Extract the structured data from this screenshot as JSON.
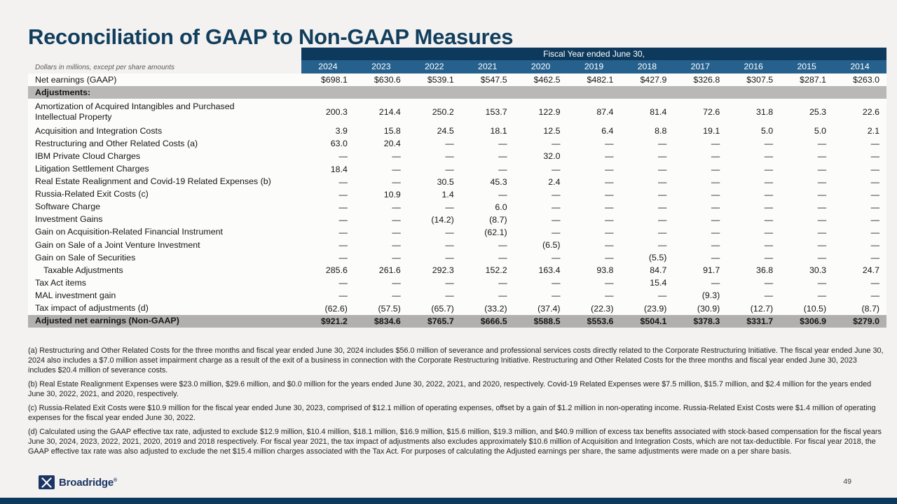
{
  "slide": {
    "title": "Reconciliation of GAAP to Non-GAAP Measures",
    "page_number": "49"
  },
  "table": {
    "note": "Dollars in millions, except per share amounts",
    "header_group": "Fiscal Year ended June 30,",
    "years": [
      "2024",
      "2023",
      "2022",
      "2021",
      "2020",
      "2019",
      "2018",
      "2017",
      "2016",
      "2015",
      "2014"
    ],
    "rows": [
      {
        "label": "Net earnings (GAAP)",
        "values": [
          "$698.1",
          "$630.6",
          "$539.1",
          "$547.5",
          "$462.5",
          "$482.1",
          "$427.9",
          "$326.8",
          "$307.5",
          "$287.1",
          "$263.0"
        ]
      },
      {
        "label": "Adjustments:",
        "type": "section",
        "values": [
          "",
          "",
          "",
          "",
          "",
          "",
          "",
          "",
          "",
          "",
          ""
        ]
      },
      {
        "label": "Amortization of Acquired Intangibles and Purchased Intellectual Property",
        "wrap": true,
        "values": [
          "200.3",
          "214.4",
          "250.2",
          "153.7",
          "122.9",
          "87.4",
          "81.4",
          "72.6",
          "31.8",
          "25.3",
          "22.6"
        ]
      },
      {
        "label": "Acquisition and Integration Costs",
        "values": [
          "3.9",
          "15.8",
          "24.5",
          "18.1",
          "12.5",
          "6.4",
          "8.8",
          "19.1",
          "5.0",
          "5.0",
          "2.1"
        ]
      },
      {
        "label": "Restructuring and Other Related Costs (a)",
        "values": [
          "63.0",
          "20.4",
          "—",
          "—",
          "—",
          "—",
          "—",
          "—",
          "—",
          "—",
          "—"
        ]
      },
      {
        "label": "IBM Private Cloud Charges",
        "values": [
          "—",
          "—",
          "—",
          "—",
          "32.0",
          "—",
          "—",
          "—",
          "—",
          "—",
          "—"
        ]
      },
      {
        "label": "Litigation Settlement Charges",
        "values": [
          "18.4",
          "—",
          "—",
          "—",
          "—",
          "—",
          "—",
          "—",
          "—",
          "—",
          "—"
        ]
      },
      {
        "label": "Real Estate Realignment and Covid-19 Related Expenses (b)",
        "values": [
          "—",
          "—",
          "30.5",
          "45.3",
          "2.4",
          "—",
          "—",
          "—",
          "—",
          "—",
          "—"
        ]
      },
      {
        "label": "Russia-Related Exit Costs (c)",
        "values": [
          "—",
          "10.9",
          "1.4",
          "—",
          "—",
          "—",
          "—",
          "—",
          "—",
          "—",
          "—"
        ]
      },
      {
        "label": "Software Charge",
        "values": [
          "—",
          "—",
          "—",
          "6.0",
          "—",
          "—",
          "—",
          "—",
          "—",
          "—",
          "—"
        ]
      },
      {
        "label": "Investment Gains",
        "values": [
          "—",
          "—",
          "(14.2)",
          "(8.7)",
          "—",
          "—",
          "—",
          "—",
          "—",
          "—",
          "—"
        ]
      },
      {
        "label": "Gain on Acquisition-Related Financial Instrument",
        "values": [
          "—",
          "—",
          "—",
          "(62.1)",
          "—",
          "—",
          "—",
          "—",
          "—",
          "—",
          "—"
        ]
      },
      {
        "label": "Gain on Sale of a Joint Venture Investment",
        "values": [
          "—",
          "—",
          "—",
          "—",
          "(6.5)",
          "—",
          "—",
          "—",
          "—",
          "—",
          "—"
        ]
      },
      {
        "label": "Gain on Sale of Securities",
        "values": [
          "—",
          "—",
          "—",
          "—",
          "—",
          "—",
          "(5.5)",
          "—",
          "—",
          "—",
          "—"
        ]
      },
      {
        "label": "Taxable Adjustments",
        "indent": true,
        "values": [
          "285.6",
          "261.6",
          "292.3",
          "152.2",
          "163.4",
          "93.8",
          "84.7",
          "91.7",
          "36.8",
          "30.3",
          "24.7"
        ]
      },
      {
        "label": "Tax Act items",
        "values": [
          "—",
          "—",
          "—",
          "—",
          "—",
          "—",
          "15.4",
          "—",
          "—",
          "—",
          "—"
        ]
      },
      {
        "label": "MAL investment gain",
        "values": [
          "—",
          "—",
          "—",
          "—",
          "—",
          "—",
          "—",
          "(9.3)",
          "—",
          "—",
          "—"
        ]
      },
      {
        "label": "Tax impact of adjustments (d)",
        "values": [
          "(62.6)",
          "(57.5)",
          "(65.7)",
          "(33.2)",
          "(37.4)",
          "(22.3)",
          "(23.9)",
          "(30.9)",
          "(12.7)",
          "(10.5)",
          "(8.7)"
        ]
      },
      {
        "label": "Adjusted net earnings (Non-GAAP)",
        "type": "total",
        "values": [
          "$921.2",
          "$834.6",
          "$765.7",
          "$666.5",
          "$588.5",
          "$553.6",
          "$504.1",
          "$378.3",
          "$331.7",
          "$306.9",
          "$279.0"
        ]
      }
    ]
  },
  "footnotes": [
    "(a) Restructuring and Other Related Costs for the three months and fiscal year ended June 30, 2024 includes $56.0 million of severance and professional services costs directly related to the Corporate Restructuring Initiative. The fiscal year ended June 30, 2024 also includes a $7.0 million asset impairment charge as a result of the exit of a business in connection with the Corporate Restructuring Initiative. Restructuring and Other Related Costs for the three months and fiscal year ended June 30, 2023 includes $20.4 million of severance costs.",
    "(b) Real Estate Realignment Expenses were $23.0 million, $29.6 million, and $0.0 million for the years ended June 30, 2022, 2021, and 2020, respectively. Covid-19 Related Expenses were $7.5 million, $15.7 million, and $2.4 million for the years ended June 30, 2022, 2021, and 2020, respectively.",
    "(c) Russia-Related Exit Costs were $10.9 million for the fiscal year ended June 30, 2023, comprised of $12.1 million of operating expenses, offset by a gain of $1.2 million in non-operating income. Russia-Related Exist Costs were $1.4 million of operating expenses for the fiscal year ended June 30, 2022.",
    "(d) Calculated using the GAAP effective tax rate, adjusted to exclude $12.9 million, $10.4 million, $18.1 million, $16.9 million, $15.6 million, $19.3 million, and $40.9 million of excess tax benefits associated with stock-based compensation for the fiscal years June 30, 2024, 2023, 2022, 2021, 2020, 2019 and 2018 respectively. For fiscal year 2021, the tax impact of adjustments also excludes approximately $10.6 million of Acquisition and Integration Costs, which are not tax-deductible. For fiscal year 2018, the GAAP effective tax rate was also adjusted to exclude the net $15.4 million charges associated with the Tax Act. For purposes of calculating the Adjusted earnings per share, the same adjustments were made on a per share basis."
  ],
  "logo": {
    "text": "Broadridge",
    "reg": "®"
  },
  "colors": {
    "header_navy": "#0d3a5c",
    "header_steel_blue": "#26618e",
    "section_band_gray": "#b9b8b7",
    "total_band_gray": "#b1b0af",
    "slide_background": "#f3f2f1",
    "title_navy": "#113e5c",
    "logo_navy": "#1c3664"
  }
}
